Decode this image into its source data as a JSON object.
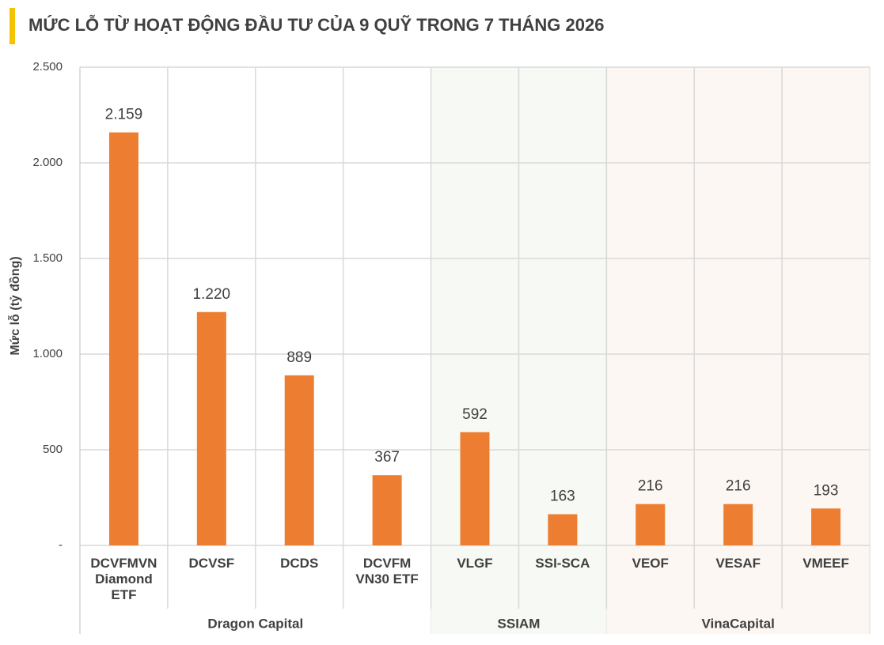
{
  "chart_data": {
    "type": "bar",
    "title": "MỨC LỖ TỪ HOẠT ĐỘNG ĐẦU TƯ CỦA 9 QUỸ TRONG 7 THÁNG 2026",
    "y_label": "Mức lỗ (tỷ đồng)",
    "categories": [
      "DCVFMVN Diamond ETF",
      "DCVSF",
      "DCDS",
      "DCVFM VN30 ETF",
      "VLGF",
      "SSI-SCA",
      "VEOF",
      "VESAF",
      "VMEEF"
    ],
    "values": [
      2159,
      1220,
      889,
      367,
      592,
      163,
      216,
      216,
      193
    ],
    "value_labels": [
      "2.159",
      "1.220",
      "889",
      "367",
      "592",
      "163",
      "216",
      "216",
      "193"
    ],
    "color": "#ed7d31",
    "groups": [
      {
        "name": "Dragon Capital",
        "size": 4,
        "background": "#ffffff"
      },
      {
        "name": "SSIAM",
        "size": 2,
        "background": "#f6f9f4"
      },
      {
        "name": "VinaCapital",
        "size": 3,
        "background": "#fcf7f2"
      }
    ],
    "ylim": [
      0,
      2500
    ],
    "yticks": [
      {
        "value": 0,
        "label": "-"
      },
      500,
      {
        "value": 1000,
        "label": "1.000"
      },
      {
        "value": 1500,
        "label": "1.500"
      },
      {
        "value": 2000,
        "label": "2.000"
      },
      {
        "value": 2500,
        "label": "2.500"
      }
    ],
    "grid": true
  }
}
